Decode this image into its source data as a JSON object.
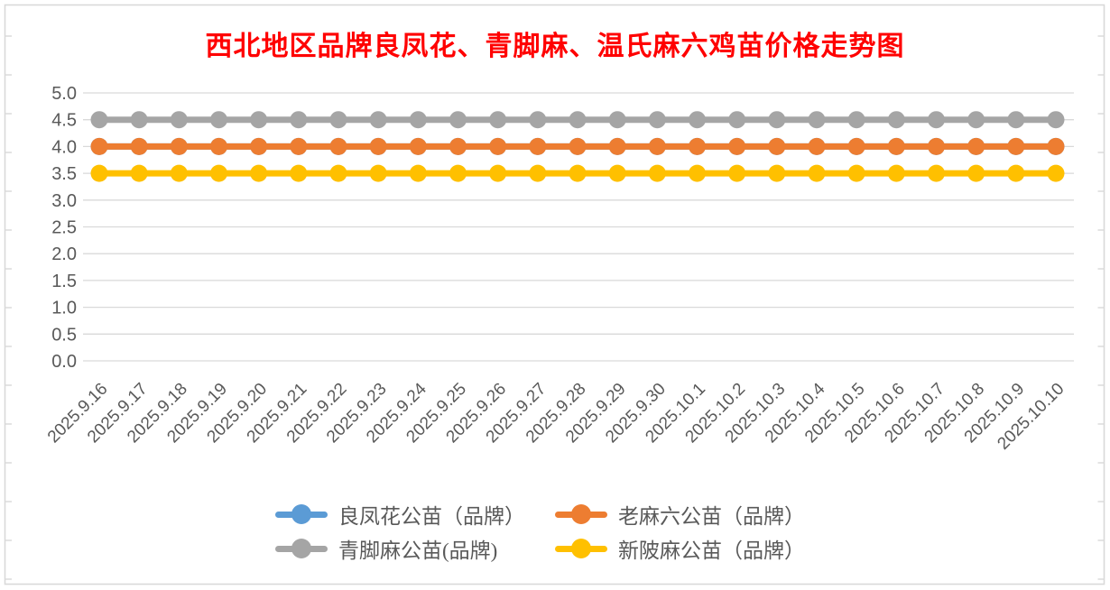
{
  "title": {
    "text": "西北地区品牌良凤花、青脚麻、温氏麻六鸡苗价格走势图",
    "color": "#FF0000"
  },
  "chart_data": {
    "type": "line",
    "title": "西北地区品牌良凤花、青脚麻、温氏麻六鸡苗价格走势图",
    "x": [
      "2025.9.16",
      "2025.9.17",
      "2025.9.18",
      "2025.9.19",
      "2025.9.20",
      "2025.9.21",
      "2025.9.22",
      "2025.9.23",
      "2025.9.24",
      "2025.9.25",
      "2025.9.26",
      "2025.9.27",
      "2025.9.28",
      "2025.9.29",
      "2025.9.30",
      "2025.10.1",
      "2025.10.2",
      "2025.10.3",
      "2025.10.4",
      "2025.10.5",
      "2025.10.6",
      "2025.10.7",
      "2025.10.8",
      "2025.10.9",
      "2025.10.10"
    ],
    "series": [
      {
        "name": "良凤花公苗（品牌）",
        "color": "#5B9BD5",
        "values": [
          4.0,
          4.0,
          4.0,
          4.0,
          4.0,
          4.0,
          4.0,
          4.0,
          4.0,
          4.0,
          4.0,
          4.0,
          4.0,
          4.0,
          4.0,
          4.0,
          4.0,
          4.0,
          4.0,
          4.0,
          4.0,
          4.0,
          4.0,
          4.0,
          4.0
        ]
      },
      {
        "name": "老麻六公苗（品牌）",
        "color": "#ED7D31",
        "values": [
          4.0,
          4.0,
          4.0,
          4.0,
          4.0,
          4.0,
          4.0,
          4.0,
          4.0,
          4.0,
          4.0,
          4.0,
          4.0,
          4.0,
          4.0,
          4.0,
          4.0,
          4.0,
          4.0,
          4.0,
          4.0,
          4.0,
          4.0,
          4.0,
          4.0
        ]
      },
      {
        "name": "青脚麻公苗(品牌)",
        "color": "#A5A5A5",
        "values": [
          4.5,
          4.5,
          4.5,
          4.5,
          4.5,
          4.5,
          4.5,
          4.5,
          4.5,
          4.5,
          4.5,
          4.5,
          4.5,
          4.5,
          4.5,
          4.5,
          4.5,
          4.5,
          4.5,
          4.5,
          4.5,
          4.5,
          4.5,
          4.5,
          4.5
        ]
      },
      {
        "name": "新陂麻公苗（品牌）",
        "color": "#FFC000",
        "values": [
          3.5,
          3.5,
          3.5,
          3.5,
          3.5,
          3.5,
          3.5,
          3.5,
          3.5,
          3.5,
          3.5,
          3.5,
          3.5,
          3.5,
          3.5,
          3.5,
          3.5,
          3.5,
          3.5,
          3.5,
          3.5,
          3.5,
          3.5,
          3.5,
          3.5
        ]
      }
    ],
    "ylim": [
      0.0,
      5.0
    ],
    "ytick_step": 0.5,
    "ytick_labels": [
      "0.0",
      "0.5",
      "1.0",
      "1.5",
      "2.0",
      "2.5",
      "3.0",
      "3.5",
      "4.0",
      "4.5",
      "5.0"
    ],
    "grid": "horizontal",
    "legend_position": "bottom",
    "colors": {
      "gridline": "#D9D9D9",
      "frame": "#D9D9D9",
      "axis_text": "#595959"
    }
  },
  "legend": {
    "items": [
      {
        "label": "良凤花公苗（品牌）",
        "color": "#5B9BD5"
      },
      {
        "label": "老麻六公苗（品牌）",
        "color": "#ED7D31"
      },
      {
        "label": "青脚麻公苗(品牌)",
        "color": "#A5A5A5"
      },
      {
        "label": "新陂麻公苗（品牌）",
        "color": "#FFC000"
      }
    ]
  }
}
